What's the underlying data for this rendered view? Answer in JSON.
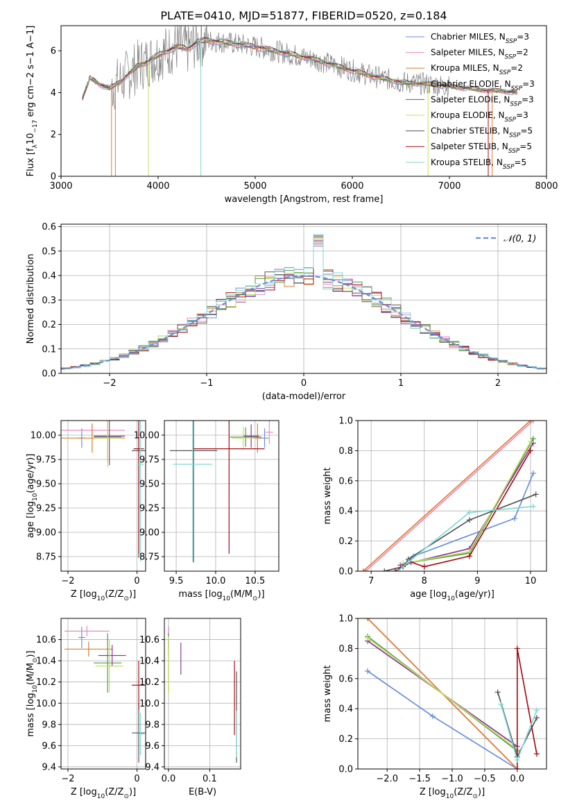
{
  "figure": {
    "title": "PLATE=0410, MJD=51877, FIBERID=0520, z=0.184",
    "colors": {
      "chabrier_miles": "#6b8fd6",
      "salpeter_miles": "#e889c0",
      "kroupa_miles": "#e07b2e",
      "chabrier_elodie": "#4a9a4a",
      "salpeter_elodie": "#8b3a9a",
      "kroupa_elodie": "#c6e05a",
      "chabrier_stelib": "#555555",
      "salpeter_stelib": "#a50f15",
      "kroupa_stelib": "#7fd8d8"
    }
  },
  "chart_data": [
    {
      "id": "spectrum",
      "type": "line",
      "xlabel": "wavelength [Angstrom, rest frame]",
      "ylabel": "Flux [f",
      "ylabel_parts": [
        "Flux [f",
        "λ",
        "10",
        "−17",
        " erg cm",
        "−2",
        " s",
        "−1",
        " A",
        "−1",
        "]"
      ],
      "xlim": [
        3000,
        8000
      ],
      "ylim": [
        0,
        7.2
      ],
      "xticks": [
        3000,
        4000,
        5000,
        6000,
        7000,
        8000
      ],
      "yticks": [
        0,
        2,
        4,
        6
      ],
      "legend_position": "upper right",
      "legend": [
        {
          "prefix": "Chabrier MILES, N",
          "sub": "SSP",
          "suffix": "=3",
          "color_key": "chabrier_miles"
        },
        {
          "prefix": "Salpeter MILES, N",
          "sub": "SSP",
          "suffix": "=2",
          "color_key": "salpeter_miles"
        },
        {
          "prefix": "Kroupa MILES, N",
          "sub": "SSP",
          "suffix": "=2",
          "color_key": "kroupa_miles"
        },
        {
          "prefix": "Chabrier ELODIE, N",
          "sub": "SSP",
          "suffix": "=3",
          "color_key": "chabrier_elodie"
        },
        {
          "prefix": "Salpeter ELODIE, N",
          "sub": "SSP",
          "suffix": "=3",
          "color_key": "salpeter_elodie"
        },
        {
          "prefix": "Kroupa ELODIE, N",
          "sub": "SSP",
          "suffix": "=3",
          "color_key": "kroupa_elodie"
        },
        {
          "prefix": "Chabrier STELIB, N",
          "sub": "SSP",
          "suffix": "=5",
          "color_key": "chabrier_stelib"
        },
        {
          "prefix": "Salpeter STELIB, N",
          "sub": "SSP",
          "suffix": "=5",
          "color_key": "salpeter_stelib"
        },
        {
          "prefix": "Kroupa STELIB, N",
          "sub": "SSP",
          "suffix": "=5",
          "color_key": "kroupa_stelib"
        }
      ],
      "continuum": {
        "x": [
          3220,
          3300,
          3400,
          3500,
          3600,
          3700,
          3800,
          3900,
          4000,
          4100,
          4200,
          4300,
          4400,
          4500,
          4700,
          5000,
          5300,
          5600,
          5900,
          6200,
          6500,
          6800,
          7000,
          7200,
          7400,
          7500,
          7700
        ],
        "y": [
          3.7,
          4.7,
          4.4,
          4.2,
          4.5,
          4.9,
          5.3,
          5.5,
          5.8,
          6.0,
          6.2,
          6.1,
          6.4,
          6.5,
          6.4,
          6.2,
          5.9,
          5.6,
          5.2,
          4.8,
          4.5,
          4.4,
          4.3,
          4.2,
          4.1,
          4.1,
          4.0
        ]
      },
      "noise_range": [
        3520,
        7000
      ]
    },
    {
      "id": "residuals",
      "type": "line",
      "xlabel": "(data-model)/error",
      "ylabel": "Normed distribution",
      "xlim": [
        -2.5,
        2.5
      ],
      "ylim": [
        0,
        0.61
      ],
      "xticks": [
        -2,
        -1,
        0,
        1,
        2
      ],
      "xtick_labels": [
        "−2",
        "−1",
        "0",
        "1",
        "2"
      ],
      "yticks": [
        0.0,
        0.1,
        0.2,
        0.3,
        0.4,
        0.5,
        0.6
      ],
      "ytick_labels": [
        "0.0",
        "0.1",
        "0.2",
        "0.3",
        "0.4",
        "0.5",
        "0.6"
      ],
      "grid": true,
      "legend_position": "upper right",
      "gaussian_legend": "𝒩(0, 1)",
      "bin_width": 0.1
    },
    {
      "id": "z_age",
      "type": "scatter",
      "xlabel": "Z [log",
      "xlabel_parts": [
        "Z [log",
        "10",
        "(Z/Z",
        "⊙",
        ")]"
      ],
      "ylabel_parts": [
        "age  [log",
        "10",
        "(age/yr)]"
      ],
      "xlim": [
        -2.2,
        0.25
      ],
      "ylim": [
        8.6,
        10.15
      ],
      "xticks": [
        -2,
        0
      ],
      "xtick_labels": [
        "−2",
        "0"
      ],
      "yticks": [
        8.75,
        9.0,
        9.25,
        9.5,
        9.75,
        10.0
      ],
      "ytick_labels": [
        "8.75",
        "9.00",
        "9.25",
        "9.50",
        "9.75",
        "10.00"
      ],
      "grid": true,
      "points": [
        {
          "color_key": "chabrier_miles",
          "x": -1.6,
          "xerr": 0.1,
          "y": 9.97,
          "yerr": 0.1
        },
        {
          "color_key": "salpeter_miles",
          "x": -1.3,
          "xerr": 0.95,
          "y": 10.05,
          "yerr": 0.06
        },
        {
          "color_key": "kroupa_miles",
          "x": -1.3,
          "xerr": 0.95,
          "y": 9.97,
          "yerr": 0.15
        },
        {
          "color_key": "chabrier_elodie",
          "x": -0.85,
          "xerr": 0.4,
          "y": 9.98,
          "yerr": 0.25
        },
        {
          "color_key": "salpeter_elodie",
          "x": -0.8,
          "xerr": 0.45,
          "y": 9.99,
          "yerr": 0.3
        },
        {
          "color_key": "kroupa_elodie",
          "x": -0.85,
          "xerr": 0.4,
          "y": 9.97,
          "yerr": 0.3
        },
        {
          "color_key": "chabrier_stelib",
          "x": 0.05,
          "xerr": 0.2,
          "y": 9.84,
          "yerr": 1.1
        },
        {
          "color_key": "salpeter_stelib",
          "x": 0.05,
          "xerr": 0.15,
          "y": 9.86,
          "yerr": 1.08
        },
        {
          "color_key": "kroupa_stelib",
          "x": 0.1,
          "xerr": 0.1,
          "y": 9.7,
          "yerr": 1.0
        }
      ]
    },
    {
      "id": "mass_age",
      "type": "scatter",
      "xlabel_parts": [
        "mass [log",
        "10",
        "(M/M",
        "⊙",
        ")]"
      ],
      "xlim": [
        9.35,
        10.8
      ],
      "ylim": [
        8.6,
        10.15
      ],
      "xticks": [
        9.5,
        10.0,
        10.5
      ],
      "xtick_labels": [
        "9.5",
        "10.0",
        "10.5"
      ],
      "yticks": [
        8.75,
        9.0,
        9.25,
        9.5,
        9.75,
        10.0
      ],
      "ytick_labels": [
        "8.75",
        "9.00",
        "9.25",
        "9.50",
        "9.75",
        "10.00"
      ],
      "grid": true,
      "points": [
        {
          "color_key": "chabrier_miles",
          "x": 10.62,
          "xerr": 0.05,
          "y": 9.97,
          "yerr": 0.1
        },
        {
          "color_key": "salpeter_miles",
          "x": 10.68,
          "xerr": 0.05,
          "y": 10.03,
          "yerr": 0.12
        },
        {
          "color_key": "kroupa_miles",
          "x": 10.53,
          "xerr": 0.05,
          "y": 9.97,
          "yerr": 0.15
        },
        {
          "color_key": "chabrier_elodie",
          "x": 10.38,
          "xerr": 0.2,
          "y": 9.98,
          "yerr": 0.1
        },
        {
          "color_key": "salpeter_elodie",
          "x": 10.45,
          "xerr": 0.1,
          "y": 9.99,
          "yerr": 0.12
        },
        {
          "color_key": "kroupa_elodie",
          "x": 10.35,
          "xerr": 0.15,
          "y": 9.97,
          "yerr": 0.12
        },
        {
          "color_key": "chabrier_stelib",
          "x": 9.72,
          "xerr": 0.3,
          "y": 9.84,
          "yerr": 1.15
        },
        {
          "color_key": "salpeter_stelib",
          "x": 10.17,
          "xerr": 0.45,
          "y": 9.86,
          "yerr": 1.08
        },
        {
          "color_key": "kroupa_stelib",
          "x": 9.71,
          "xerr": 0.25,
          "y": 9.7,
          "yerr": 1.0
        }
      ]
    },
    {
      "id": "weights_vs_age",
      "type": "line",
      "xlabel_parts": [
        "age  [log",
        "10",
        "(age/yr)]"
      ],
      "ylabel": "mass weight",
      "xlim": [
        6.75,
        10.3
      ],
      "ylim": [
        0,
        1.0
      ],
      "xticks": [
        7,
        8,
        9,
        10
      ],
      "xtick_labels": [
        "7",
        "8",
        "9",
        "10"
      ],
      "yticks": [
        0.0,
        0.2,
        0.4,
        0.6,
        0.8,
        1.0
      ],
      "ytick_labels": [
        "0.0",
        "0.2",
        "0.4",
        "0.6",
        "0.8",
        "1.0"
      ],
      "grid": true,
      "series": [
        {
          "color_key": "chabrier_miles",
          "x": [
            7.5,
            7.8,
            9.7,
            10.05
          ],
          "y": [
            0.0,
            0.1,
            0.35,
            0.65
          ]
        },
        {
          "color_key": "salpeter_miles",
          "x": [
            6.9,
            10.05
          ],
          "y": [
            0.0,
            1.0
          ]
        },
        {
          "color_key": "kroupa_miles",
          "x": [
            6.85,
            10.0
          ],
          "y": [
            0.0,
            1.0
          ]
        },
        {
          "color_key": "chabrier_elodie",
          "x": [
            7.6,
            8.85,
            10.05
          ],
          "y": [
            0.05,
            0.12,
            0.88
          ]
        },
        {
          "color_key": "salpeter_elodie",
          "x": [
            7.55,
            8.85,
            10.05
          ],
          "y": [
            0.04,
            0.15,
            0.85
          ]
        },
        {
          "color_key": "kroupa_elodie",
          "x": [
            7.6,
            8.85,
            10.0
          ],
          "y": [
            0.05,
            0.13,
            0.86
          ]
        },
        {
          "color_key": "chabrier_stelib",
          "x": [
            7.25,
            7.6,
            7.7,
            8.85,
            10.1
          ],
          "y": [
            0.0,
            0.03,
            0.08,
            0.34,
            0.51
          ]
        },
        {
          "color_key": "salpeter_stelib",
          "x": [
            7.45,
            7.75,
            8.0,
            8.85,
            10.0
          ],
          "y": [
            0.0,
            0.06,
            0.03,
            0.1,
            0.8
          ]
        },
        {
          "color_key": "kroupa_stelib",
          "x": [
            7.5,
            7.7,
            8.85,
            10.05
          ],
          "y": [
            0.0,
            0.06,
            0.39,
            0.43
          ]
        }
      ]
    },
    {
      "id": "z_mass",
      "type": "scatter",
      "xlabel_parts": [
        "Z [log",
        "10",
        "(Z/Z",
        "⊙",
        ")]"
      ],
      "ylabel_parts": [
        "mass [log",
        "10",
        "(M/M",
        "⊙",
        ")]"
      ],
      "xlim": [
        -2.2,
        0.25
      ],
      "ylim": [
        9.38,
        10.8
      ],
      "xticks": [
        -2,
        0
      ],
      "xtick_labels": [
        "−2",
        "0"
      ],
      "yticks": [
        9.4,
        9.6,
        9.8,
        10.0,
        10.2,
        10.4,
        10.6
      ],
      "ytick_labels": [
        "9.4",
        "9.6",
        "9.8",
        "10.0",
        "10.2",
        "10.4",
        "10.6"
      ],
      "grid": true,
      "points": [
        {
          "color_key": "chabrier_miles",
          "x": -1.6,
          "xerr": 0.1,
          "y": 10.62,
          "yerr": 0.1
        },
        {
          "color_key": "salpeter_miles",
          "x": -1.45,
          "xerr": 0.65,
          "y": 10.68,
          "yerr": 0.05
        },
        {
          "color_key": "kroupa_miles",
          "x": -1.4,
          "xerr": 0.7,
          "y": 10.51,
          "yerr": 0.07
        },
        {
          "color_key": "chabrier_elodie",
          "x": -0.85,
          "xerr": 0.4,
          "y": 10.38,
          "yerr": 0.28
        },
        {
          "color_key": "salpeter_elodie",
          "x": -0.72,
          "xerr": 0.4,
          "y": 10.45,
          "yerr": 0.1
        },
        {
          "color_key": "kroupa_elodie",
          "x": -0.8,
          "xerr": 0.4,
          "y": 10.35,
          "yerr": 0.25
        },
        {
          "color_key": "chabrier_stelib",
          "x": 0.05,
          "xerr": 0.2,
          "y": 9.72,
          "yerr": 0.28
        },
        {
          "color_key": "salpeter_stelib",
          "x": 0.05,
          "xerr": 0.2,
          "y": 10.17,
          "yerr": 0.23
        },
        {
          "color_key": "kroupa_stelib",
          "x": 0.1,
          "xerr": 0.1,
          "y": 9.71,
          "yerr": 0.2
        }
      ]
    },
    {
      "id": "ebv_mass",
      "type": "scatter",
      "xlabel": "E(B-V)",
      "xlim": [
        -0.01,
        0.175
      ],
      "ylim": [
        9.38,
        10.8
      ],
      "xticks": [
        0.0,
        0.1
      ],
      "xtick_labels": [
        "0.0",
        "0.1"
      ],
      "yticks": [
        9.4,
        9.6,
        9.8,
        10.0,
        10.2,
        10.4,
        10.6
      ],
      "ytick_labels": [
        "9.4",
        "9.6",
        "9.8",
        "10.0",
        "10.2",
        "10.4",
        "10.6"
      ],
      "grid": true,
      "points": [
        {
          "color_key": "chabrier_miles",
          "x": 0.0,
          "xerr": 0,
          "y": 10.62,
          "yerr": 0.1
        },
        {
          "color_key": "salpeter_miles",
          "x": 0.0,
          "xerr": 0,
          "y": 10.68,
          "yerr": 0.05
        },
        {
          "color_key": "kroupa_miles",
          "x": 0.0,
          "xerr": 0,
          "y": 10.51,
          "yerr": 0.07
        },
        {
          "color_key": "chabrier_elodie",
          "x": 0.0,
          "xerr": 0,
          "y": 10.38,
          "yerr": 0.28
        },
        {
          "color_key": "salpeter_elodie",
          "x": 0.03,
          "xerr": 0,
          "y": 10.42,
          "yerr": 0.15
        },
        {
          "color_key": "kroupa_elodie",
          "x": 0.0,
          "xerr": 0,
          "y": 10.35,
          "yerr": 0.28
        },
        {
          "color_key": "chabrier_stelib",
          "x": 0.165,
          "xerr": 0,
          "y": 9.87,
          "yerr": 0.43
        },
        {
          "color_key": "salpeter_stelib",
          "x": 0.16,
          "xerr": 0,
          "y": 10.05,
          "yerr": 0.35
        },
        {
          "color_key": "kroupa_stelib",
          "x": 0.165,
          "xerr": 0,
          "y": 9.71,
          "yerr": 0.22
        }
      ]
    },
    {
      "id": "weights_vs_z",
      "type": "line",
      "xlabel_parts": [
        "Z [log",
        "10",
        "(Z/Z",
        "⊙",
        ")]"
      ],
      "ylabel": "mass weight",
      "xlim": [
        -2.45,
        0.45
      ],
      "ylim": [
        0,
        1.0
      ],
      "xticks": [
        -2.0,
        -1.5,
        -1.0,
        -0.5,
        0.0
      ],
      "xtick_labels": [
        "−2.0",
        "−1.5",
        "−1.0",
        "−0.5",
        "0.0"
      ],
      "yticks": [
        0.0,
        0.2,
        0.4,
        0.6,
        0.8,
        1.0
      ],
      "ytick_labels": [
        "0.0",
        "0.2",
        "0.4",
        "0.6",
        "0.8",
        "1.0"
      ],
      "grid": true,
      "series": [
        {
          "color_key": "chabrier_miles",
          "x": [
            -2.3,
            -1.3,
            0.0
          ],
          "y": [
            0.65,
            0.35,
            0.0
          ]
        },
        {
          "color_key": "salpeter_miles",
          "x": [
            -2.3,
            0.0
          ],
          "y": [
            1.0,
            0.0
          ]
        },
        {
          "color_key": "kroupa_miles",
          "x": [
            -2.3,
            0.0
          ],
          "y": [
            1.0,
            0.0
          ]
        },
        {
          "color_key": "chabrier_elodie",
          "x": [
            -2.3,
            0.0
          ],
          "y": [
            0.88,
            0.12
          ]
        },
        {
          "color_key": "salpeter_elodie",
          "x": [
            -2.3,
            0.0
          ],
          "y": [
            0.85,
            0.15
          ]
        },
        {
          "color_key": "kroupa_elodie",
          "x": [
            -2.3,
            0.0
          ],
          "y": [
            0.87,
            0.13
          ]
        },
        {
          "color_key": "chabrier_stelib",
          "x": [
            -0.3,
            0.0,
            0.3
          ],
          "y": [
            0.51,
            0.08,
            0.34
          ]
        },
        {
          "color_key": "salpeter_stelib",
          "x": [
            0.0,
            0.0,
            0.3
          ],
          "y": [
            0.0,
            0.8,
            0.1
          ]
        },
        {
          "color_key": "kroupa_stelib",
          "x": [
            -0.25,
            0.0,
            0.3
          ],
          "y": [
            0.43,
            0.06,
            0.39
          ]
        }
      ]
    }
  ]
}
